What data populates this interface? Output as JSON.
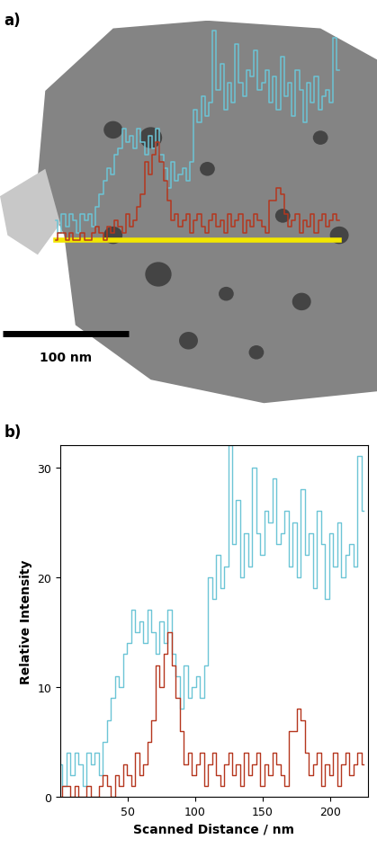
{
  "chart_data": [
    {
      "type": "image_linescan",
      "title": "a)",
      "scale_bar": {
        "label": "100 nm",
        "value": 100
      },
      "scan_line_color": "#f2e600"
    },
    {
      "type": "line",
      "title": "b)",
      "x_label": "Scanned Distance / nm",
      "y_label": "Relative Intensity",
      "xlim": [
        0,
        228
      ],
      "xticks": [
        50,
        100,
        150,
        200
      ],
      "ylim": [
        0,
        32
      ],
      "yticks": [
        0,
        10,
        20,
        30
      ],
      "x": [
        0,
        3,
        6,
        9,
        12,
        15,
        18,
        21,
        24,
        27,
        30,
        33,
        36,
        39,
        42,
        45,
        48,
        51,
        54,
        57,
        60,
        63,
        66,
        69,
        72,
        75,
        78,
        81,
        84,
        87,
        90,
        93,
        96,
        99,
        102,
        105,
        108,
        111,
        114,
        117,
        120,
        123,
        126,
        129,
        132,
        135,
        138,
        141,
        144,
        147,
        150,
        153,
        156,
        159,
        162,
        165,
        168,
        171,
        174,
        177,
        180,
        183,
        186,
        189,
        192,
        195,
        198,
        201,
        204,
        207,
        210,
        213,
        216,
        219,
        222,
        225
      ],
      "series": [
        {
          "color": "#6cc5d6",
          "values": [
            3,
            1,
            4,
            2,
            4,
            3,
            1,
            4,
            3,
            4,
            2,
            5,
            7,
            9,
            11,
            10,
            13,
            14,
            17,
            15,
            16,
            14,
            17,
            15,
            13,
            16,
            14,
            17,
            13,
            11,
            8,
            12,
            9,
            10,
            11,
            9,
            12,
            20,
            18,
            22,
            19,
            21,
            32,
            23,
            27,
            20,
            24,
            21,
            30,
            24,
            22,
            26,
            25,
            29,
            23,
            24,
            26,
            21,
            25,
            20,
            28,
            22,
            24,
            19,
            26,
            23,
            18,
            24,
            21,
            25,
            20,
            22,
            23,
            21,
            31,
            26
          ]
        },
        {
          "color": "#b5361e",
          "values": [
            0,
            1,
            1,
            0,
            1,
            0,
            0,
            1,
            0,
            0,
            1,
            2,
            1,
            0,
            2,
            1,
            3,
            2,
            1,
            4,
            2,
            3,
            5,
            7,
            12,
            10,
            13,
            15,
            12,
            9,
            6,
            3,
            4,
            2,
            3,
            4,
            1,
            3,
            4,
            2,
            1,
            3,
            4,
            2,
            3,
            1,
            4,
            2,
            3,
            4,
            1,
            3,
            2,
            4,
            3,
            2,
            1,
            6,
            6,
            8,
            7,
            4,
            2,
            3,
            4,
            1,
            3,
            2,
            4,
            1,
            3,
            4,
            2,
            3,
            4,
            3
          ]
        }
      ]
    }
  ]
}
